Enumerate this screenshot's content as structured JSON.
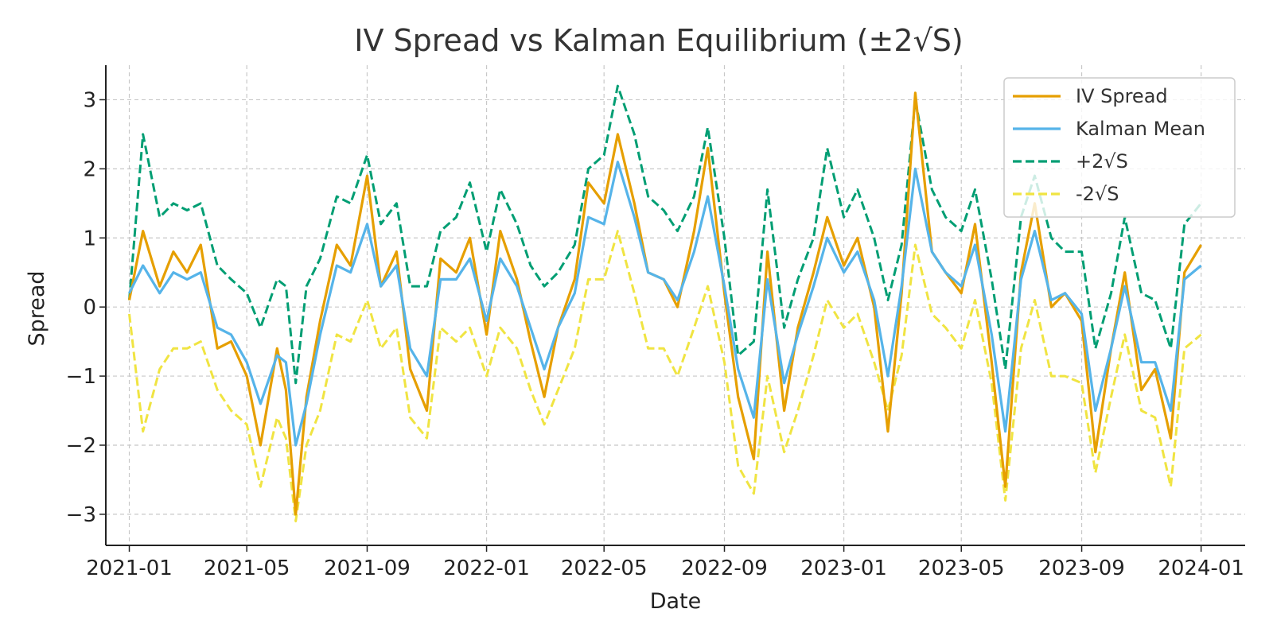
{
  "chart_data": {
    "type": "line",
    "title": "IV Spread vs Kalman Equilibrium (±2√S)",
    "xlabel": "Date",
    "ylabel": "Spread",
    "xlim": [
      "2020-12-08",
      "2024-02-15"
    ],
    "ylim": [
      -3.45,
      3.5
    ],
    "x_ticks": [
      "2021-01-01",
      "2021-05-01",
      "2021-09-01",
      "2022-01-01",
      "2022-05-01",
      "2022-09-01",
      "2023-01-01",
      "2023-05-01",
      "2023-09-01",
      "2024-01-01"
    ],
    "x_tick_labels": [
      "2021-01",
      "2021-05",
      "2021-09",
      "2022-01",
      "2022-05",
      "2022-09",
      "2023-01",
      "2023-05",
      "2023-09",
      "2024-01"
    ],
    "y_ticks": [
      -3,
      -2,
      -1,
      0,
      1,
      2,
      3
    ],
    "y_tick_labels": [
      "−3",
      "−2",
      "−1",
      "0",
      "1",
      "2",
      "3"
    ],
    "grid": true,
    "legend_position": "top-right",
    "x": [
      "2021-01-01",
      "2021-01-15",
      "2021-02-01",
      "2021-02-15",
      "2021-03-01",
      "2021-03-15",
      "2021-04-01",
      "2021-04-15",
      "2021-05-01",
      "2021-05-15",
      "2021-06-01",
      "2021-06-10",
      "2021-06-20",
      "2021-07-01",
      "2021-07-15",
      "2021-08-01",
      "2021-08-15",
      "2021-09-01",
      "2021-09-15",
      "2021-10-01",
      "2021-10-15",
      "2021-11-01",
      "2021-11-15",
      "2021-12-01",
      "2021-12-15",
      "2022-01-01",
      "2022-01-15",
      "2022-02-01",
      "2022-02-15",
      "2022-03-01",
      "2022-03-15",
      "2022-04-01",
      "2022-04-15",
      "2022-05-01",
      "2022-05-15",
      "2022-06-01",
      "2022-06-15",
      "2022-07-01",
      "2022-07-15",
      "2022-08-01",
      "2022-08-15",
      "2022-09-01",
      "2022-09-15",
      "2022-10-01",
      "2022-10-15",
      "2022-11-01",
      "2022-11-15",
      "2022-12-01",
      "2022-12-15",
      "2023-01-01",
      "2023-01-15",
      "2023-02-01",
      "2023-02-15",
      "2023-03-01",
      "2023-03-15",
      "2023-04-01",
      "2023-04-15",
      "2023-05-01",
      "2023-05-15",
      "2023-06-01",
      "2023-06-15",
      "2023-07-01",
      "2023-07-15",
      "2023-08-01",
      "2023-08-15",
      "2023-09-01",
      "2023-09-15",
      "2023-10-01",
      "2023-10-15",
      "2023-11-01",
      "2023-11-15",
      "2023-12-01",
      "2023-12-15",
      "2024-01-01"
    ],
    "series": [
      {
        "name": "IV Spread",
        "color": "#E69F00",
        "dash": "solid",
        "values": [
          0.1,
          1.1,
          0.3,
          0.8,
          0.5,
          0.9,
          -0.6,
          -0.5,
          -1.0,
          -2.0,
          -0.6,
          -1.2,
          -3.0,
          -1.3,
          -0.2,
          0.9,
          0.6,
          1.9,
          0.3,
          0.8,
          -0.9,
          -1.5,
          0.7,
          0.5,
          1.0,
          -0.4,
          1.1,
          0.4,
          -0.5,
          -1.3,
          -0.3,
          0.4,
          1.8,
          1.5,
          2.5,
          1.5,
          0.5,
          0.4,
          0.0,
          1.1,
          2.3,
          0.2,
          -1.3,
          -2.2,
          0.8,
          -1.5,
          -0.3,
          0.5,
          1.3,
          0.6,
          1.0,
          0.0,
          -1.8,
          0.2,
          3.1,
          0.8,
          0.5,
          0.2,
          1.2,
          -0.8,
          -2.6,
          0.5,
          1.5,
          0.0,
          0.2,
          -0.2,
          -2.1,
          -0.6,
          0.5,
          -1.2,
          -0.9,
          -1.9,
          0.5,
          0.9
        ]
      },
      {
        "name": "Kalman Mean",
        "color": "#56B4E9",
        "dash": "solid",
        "values": [
          0.2,
          0.6,
          0.2,
          0.5,
          0.4,
          0.5,
          -0.3,
          -0.4,
          -0.8,
          -1.4,
          -0.7,
          -0.8,
          -2.0,
          -1.4,
          -0.4,
          0.6,
          0.5,
          1.2,
          0.3,
          0.6,
          -0.6,
          -1.0,
          0.4,
          0.4,
          0.7,
          -0.2,
          0.7,
          0.3,
          -0.3,
          -0.9,
          -0.3,
          0.2,
          1.3,
          1.2,
          2.1,
          1.3,
          0.5,
          0.4,
          0.1,
          0.8,
          1.6,
          0.3,
          -0.9,
          -1.6,
          0.4,
          -1.1,
          -0.4,
          0.3,
          1.0,
          0.5,
          0.8,
          0.1,
          -1.0,
          0.3,
          2.0,
          0.8,
          0.5,
          0.3,
          0.9,
          -0.4,
          -1.8,
          0.4,
          1.1,
          0.1,
          0.2,
          -0.1,
          -1.5,
          -0.6,
          0.3,
          -0.8,
          -0.8,
          -1.5,
          0.4,
          0.6
        ]
      },
      {
        "name": "+2√S",
        "color": "#009E73",
        "dash": "dashed",
        "values": [
          0.1,
          2.5,
          1.3,
          1.5,
          1.4,
          1.5,
          0.6,
          0.4,
          0.2,
          -0.3,
          0.4,
          0.3,
          -1.1,
          0.3,
          0.7,
          1.6,
          1.5,
          2.2,
          1.2,
          1.5,
          0.3,
          0.3,
          1.1,
          1.3,
          1.8,
          0.8,
          1.7,
          1.2,
          0.6,
          0.3,
          0.5,
          0.9,
          2.0,
          2.2,
          3.2,
          2.5,
          1.6,
          1.4,
          1.1,
          1.6,
          2.6,
          1.0,
          -0.7,
          -0.5,
          1.7,
          -0.3,
          0.4,
          1.0,
          2.3,
          1.3,
          1.7,
          1.0,
          0.1,
          0.9,
          3.0,
          1.7,
          1.3,
          1.1,
          1.7,
          0.4,
          -0.9,
          1.3,
          1.9,
          1.0,
          0.8,
          0.8,
          -0.6,
          0.2,
          1.3,
          0.2,
          0.1,
          -0.6,
          1.2,
          1.5
        ]
      },
      {
        "name": "-2√S",
        "color": "#F0E442",
        "dash": "dashed",
        "values": [
          -0.1,
          -1.8,
          -0.9,
          -0.6,
          -0.6,
          -0.5,
          -1.2,
          -1.5,
          -1.7,
          -2.6,
          -1.6,
          -1.9,
          -3.1,
          -2.0,
          -1.5,
          -0.4,
          -0.5,
          0.1,
          -0.6,
          -0.3,
          -1.6,
          -1.9,
          -0.3,
          -0.5,
          -0.3,
          -1.0,
          -0.3,
          -0.6,
          -1.2,
          -1.7,
          -1.2,
          -0.6,
          0.4,
          0.4,
          1.1,
          0.2,
          -0.6,
          -0.6,
          -1.0,
          -0.3,
          0.3,
          -0.8,
          -2.3,
          -2.7,
          -1.0,
          -2.1,
          -1.5,
          -0.7,
          0.1,
          -0.3,
          -0.1,
          -0.8,
          -1.5,
          -0.7,
          0.9,
          -0.1,
          -0.3,
          -0.6,
          0.1,
          -1.1,
          -2.8,
          -0.6,
          0.1,
          -1.0,
          -1.0,
          -1.1,
          -2.4,
          -1.3,
          -0.4,
          -1.5,
          -1.6,
          -2.6,
          -0.6,
          -0.4
        ]
      }
    ]
  }
}
